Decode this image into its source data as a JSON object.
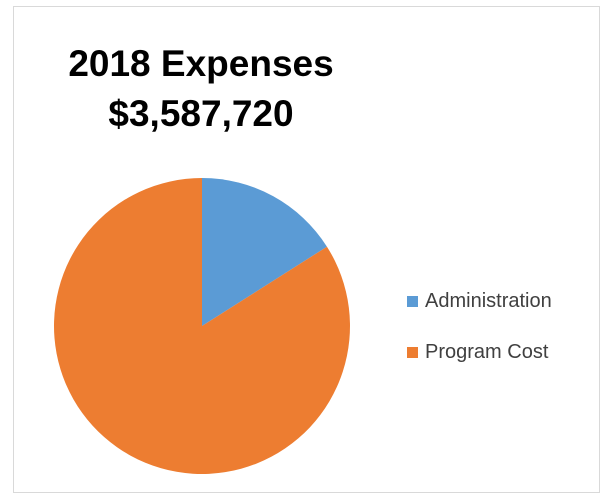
{
  "chart_data": {
    "type": "pie",
    "title": "2018 Expenses",
    "subtitle": "$3,587,720",
    "categories": [
      "Administration",
      "Program Cost"
    ],
    "values": [
      16,
      84
    ],
    "colors": [
      "#5b9bd5",
      "#ed7d31"
    ],
    "legend_position": "right",
    "start_angle": "top, clockwise"
  }
}
